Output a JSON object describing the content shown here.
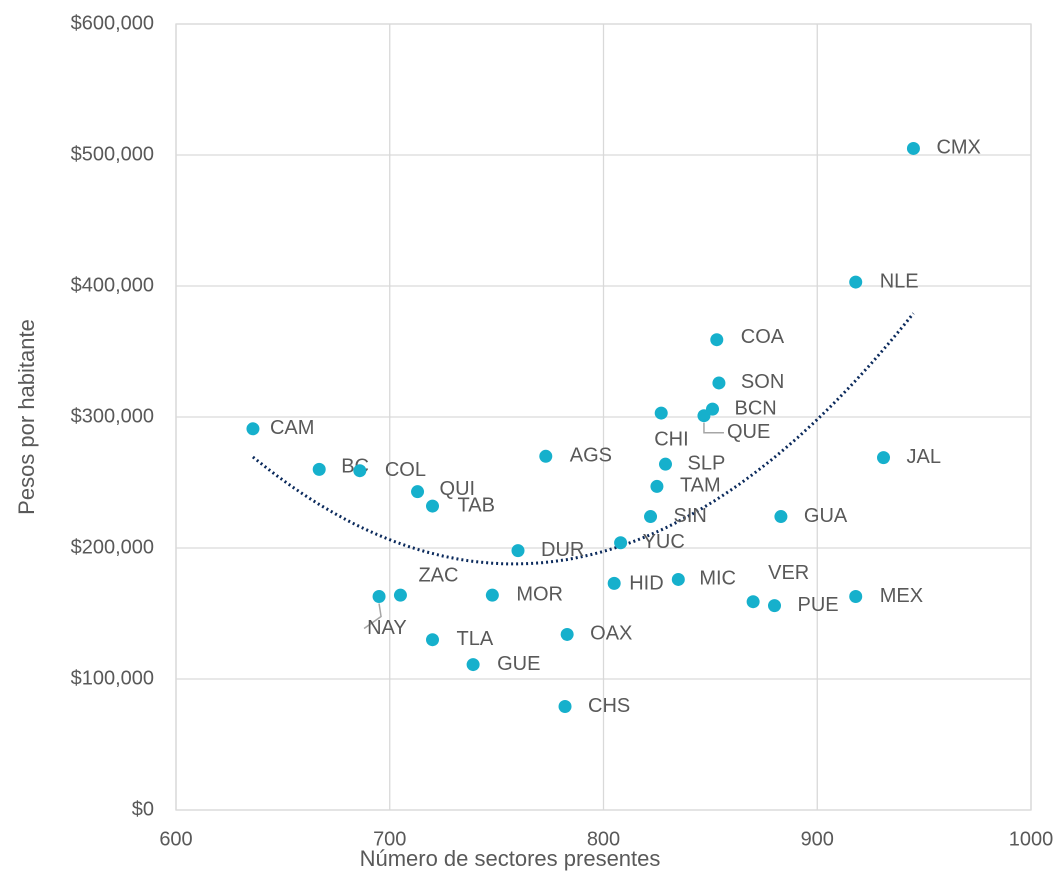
{
  "chart_data": {
    "type": "scatter",
    "x_label": "Número de sectores presentes",
    "y_label": "Pesos por habitante",
    "xlim": [
      600,
      1000
    ],
    "xticks": [
      600,
      700,
      800,
      900,
      1000
    ],
    "ylim": [
      0,
      600000
    ],
    "yticks": [
      {
        "value": 0,
        "label": "$0"
      },
      {
        "value": 100000,
        "label": "$100,000"
      },
      {
        "value": 200000,
        "label": "$200,000"
      },
      {
        "value": 300000,
        "label": "$300,000"
      },
      {
        "value": 400000,
        "label": "$400,000"
      },
      {
        "value": 500000,
        "label": "$500,000"
      },
      {
        "value": 600000,
        "label": "$600,000"
      }
    ],
    "grid": true,
    "trendline": {
      "type": "polynomial",
      "order": 2,
      "color": "#0b2a5c"
    },
    "series": [
      {
        "color": "#16b0cc",
        "labels": [
          "CAM",
          "BC",
          "COL",
          "QUI",
          "TAB",
          "NAY",
          "ZAC",
          "TLA",
          "GUE",
          "MOR",
          "DUR",
          "AGS",
          "OAX",
          "CHS",
          "HID",
          "YUC",
          "SIN",
          "TAM",
          "SLP",
          "CHI",
          "MIC",
          "QUE",
          "BCN",
          "SON",
          "COA",
          "VER",
          "PUE",
          "GUA",
          "MEX",
          "NLE",
          "JAL",
          "CMX"
        ],
        "x": [
          636,
          667,
          686,
          713,
          720,
          695,
          705,
          720,
          739,
          748,
          760,
          773,
          783,
          782,
          805,
          808,
          822,
          825,
          829,
          827,
          835,
          847,
          851,
          854,
          853,
          870,
          880,
          883,
          918,
          918,
          931,
          945
        ],
        "values": [
          291000,
          260000,
          259000,
          243000,
          232000,
          163000,
          164000,
          130000,
          111000,
          164000,
          198000,
          270000,
          134000,
          79000,
          173000,
          204000,
          224000,
          247000,
          264000,
          303000,
          176000,
          301000,
          306000,
          326000,
          359000,
          159000,
          156000,
          224000,
          163000,
          403000,
          269000,
          505000
        ]
      }
    ]
  }
}
